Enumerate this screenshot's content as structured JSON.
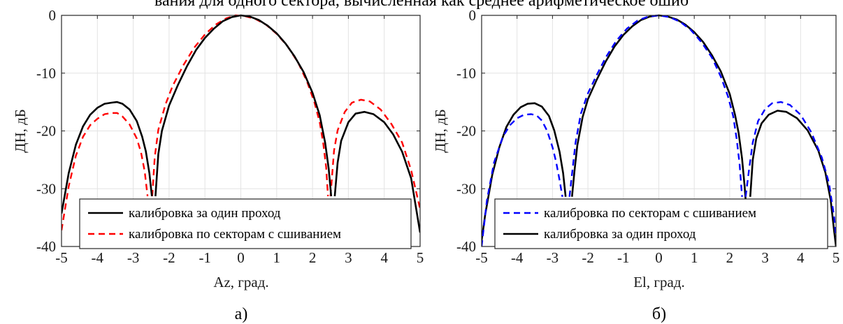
{
  "top_text": "вания для одного сектора, вычисленная как среднее арифметическое ошиб",
  "chart_data": [
    {
      "type": "line",
      "panel_label": "а)",
      "xlabel": "Az, град.",
      "ylabel": "ДН, дБ",
      "xlim": [
        -5,
        5
      ],
      "ylim": [
        -40,
        0
      ],
      "xticks": [
        -5,
        -4,
        -3,
        -2,
        -1,
        0,
        1,
        2,
        3,
        4,
        5
      ],
      "yticks": [
        0,
        -10,
        -20,
        -30,
        -40
      ],
      "grid": true,
      "legend_position": "bottom-right",
      "series": [
        {
          "name": "калибровка за один проход",
          "color": "#000000",
          "style": "solid",
          "segments": [
            [
              [
                -5.0,
                -34.3
              ],
              [
                -4.8,
                -27.3
              ],
              [
                -4.6,
                -22.4
              ],
              [
                -4.4,
                -19.2
              ],
              [
                -4.2,
                -17.2
              ],
              [
                -4.0,
                -16.0
              ],
              [
                -3.8,
                -15.3
              ],
              [
                -3.6,
                -15.1
              ],
              [
                -3.45,
                -15.0
              ],
              [
                -3.3,
                -15.3
              ],
              [
                -3.1,
                -16.3
              ],
              [
                -2.9,
                -18.3
              ],
              [
                -2.75,
                -21.0
              ],
              [
                -2.65,
                -23.5
              ],
              [
                -2.55,
                -27.3
              ],
              [
                -2.48,
                -31.3
              ]
            ],
            [
              [
                -2.38,
                -31.3
              ],
              [
                -2.3,
                -24.0
              ],
              [
                -2.2,
                -20.0
              ],
              [
                -2.0,
                -15.6
              ],
              [
                -1.75,
                -12.0
              ],
              [
                -1.5,
                -8.8
              ],
              [
                -1.25,
                -6.0
              ],
              [
                -1.0,
                -3.9
              ],
              [
                -0.75,
                -2.3
              ],
              [
                -0.5,
                -1.0
              ],
              [
                -0.25,
                -0.3
              ],
              [
                0.0,
                0.0
              ],
              [
                0.25,
                -0.2
              ],
              [
                0.5,
                -0.8
              ],
              [
                0.75,
                -1.8
              ],
              [
                1.0,
                -3.1
              ],
              [
                1.25,
                -4.9
              ],
              [
                1.5,
                -7.1
              ],
              [
                1.75,
                -9.8
              ],
              [
                2.0,
                -13.4
              ],
              [
                2.2,
                -17.3
              ],
              [
                2.35,
                -22.0
              ],
              [
                2.45,
                -26.5
              ],
              [
                2.52,
                -31.3
              ]
            ],
            [
              [
                2.62,
                -31.3
              ],
              [
                2.7,
                -25.5
              ],
              [
                2.8,
                -21.7
              ],
              [
                3.0,
                -18.5
              ],
              [
                3.2,
                -17.0
              ],
              [
                3.45,
                -16.7
              ],
              [
                3.7,
                -17.1
              ],
              [
                4.0,
                -18.5
              ],
              [
                4.25,
                -20.6
              ],
              [
                4.5,
                -23.6
              ],
              [
                4.75,
                -28.2
              ],
              [
                5.0,
                -37.6
              ]
            ]
          ]
        },
        {
          "name": "калибровка по секторам с сшиванием",
          "color": "#ff0000",
          "style": "dashed",
          "segments": [
            [
              [
                -5.0,
                -37.2
              ],
              [
                -4.8,
                -29.6
              ],
              [
                -4.6,
                -24.3
              ],
              [
                -4.4,
                -21.0
              ],
              [
                -4.2,
                -19.0
              ],
              [
                -4.0,
                -17.9
              ],
              [
                -3.8,
                -17.1
              ],
              [
                -3.6,
                -16.9
              ],
              [
                -3.45,
                -16.9
              ],
              [
                -3.3,
                -17.5
              ],
              [
                -3.1,
                -18.9
              ],
              [
                -2.9,
                -21.3
              ],
              [
                -2.78,
                -23.8
              ],
              [
                -2.68,
                -27.0
              ],
              [
                -2.6,
                -31.3
              ]
            ],
            [
              [
                -2.47,
                -31.3
              ],
              [
                -2.4,
                -24.5
              ],
              [
                -2.3,
                -19.8
              ],
              [
                -2.1,
                -15.4
              ],
              [
                -1.9,
                -12.2
              ],
              [
                -1.6,
                -8.6
              ],
              [
                -1.3,
                -5.6
              ],
              [
                -1.0,
                -3.3
              ],
              [
                -0.7,
                -1.6
              ],
              [
                -0.4,
                -0.5
              ],
              [
                -0.15,
                0.0
              ],
              [
                0.1,
                -0.1
              ],
              [
                0.4,
                -0.6
              ],
              [
                0.7,
                -1.6
              ],
              [
                1.0,
                -3.2
              ],
              [
                1.3,
                -5.3
              ],
              [
                1.6,
                -8.2
              ],
              [
                1.85,
                -11.5
              ],
              [
                2.05,
                -15.0
              ],
              [
                2.2,
                -18.5
              ],
              [
                2.3,
                -22.2
              ],
              [
                2.38,
                -26.3
              ],
              [
                2.43,
                -31.3
              ]
            ],
            [
              [
                2.5,
                -31.3
              ],
              [
                2.6,
                -23.4
              ],
              [
                2.7,
                -19.9
              ],
              [
                2.9,
                -16.7
              ],
              [
                3.1,
                -15.1
              ],
              [
                3.35,
                -14.6
              ],
              [
                3.6,
                -14.9
              ],
              [
                3.9,
                -16.3
              ],
              [
                4.2,
                -18.8
              ],
              [
                4.5,
                -22.0
              ],
              [
                4.75,
                -26.8
              ],
              [
                5.0,
                -33.5
              ]
            ]
          ]
        }
      ]
    },
    {
      "type": "line",
      "panel_label": "б)",
      "xlabel": "El, град.",
      "ylabel": "ДН, дБ",
      "xlim": [
        -5,
        5
      ],
      "ylim": [
        -40,
        0
      ],
      "xticks": [
        -5,
        -4,
        -3,
        -2,
        -1,
        0,
        1,
        2,
        3,
        4,
        5
      ],
      "yticks": [
        0,
        -10,
        -20,
        -30,
        -40
      ],
      "grid": true,
      "legend_position": "bottom-right",
      "series": [
        {
          "name": "калибровка по секторам с сшиванием",
          "color": "#0000ff",
          "style": "dashed",
          "segments": [
            [
              [
                -5.0,
                -40.0
              ],
              [
                -4.85,
                -32.0
              ],
              [
                -4.65,
                -25.5
              ],
              [
                -4.4,
                -21.0
              ],
              [
                -4.2,
                -19.0
              ],
              [
                -4.0,
                -17.8
              ],
              [
                -3.8,
                -17.2
              ],
              [
                -3.6,
                -17.1
              ],
              [
                -3.45,
                -17.3
              ],
              [
                -3.3,
                -18.2
              ],
              [
                -3.15,
                -20.0
              ],
              [
                -3.0,
                -22.8
              ],
              [
                -2.9,
                -25.3
              ],
              [
                -2.8,
                -28.5
              ],
              [
                -2.72,
                -31.4
              ]
            ],
            [
              [
                -2.52,
                -31.4
              ],
              [
                -2.45,
                -27.5
              ],
              [
                -2.35,
                -22.0
              ],
              [
                -2.2,
                -17.0
              ],
              [
                -2.0,
                -13.5
              ],
              [
                -1.75,
                -10.3
              ],
              [
                -1.5,
                -7.3
              ],
              [
                -1.2,
                -4.4
              ],
              [
                -0.9,
                -2.3
              ],
              [
                -0.6,
                -0.9
              ],
              [
                -0.3,
                -0.2
              ],
              [
                0.0,
                0.0
              ],
              [
                0.3,
                -0.3
              ],
              [
                0.6,
                -1.1
              ],
              [
                0.9,
                -2.5
              ],
              [
                1.2,
                -4.6
              ],
              [
                1.5,
                -7.3
              ],
              [
                1.75,
                -10.6
              ],
              [
                1.95,
                -14.0
              ],
              [
                2.1,
                -17.5
              ],
              [
                2.2,
                -21.5
              ],
              [
                2.28,
                -25.8
              ],
              [
                2.35,
                -31.4
              ]
            ],
            [
              [
                2.45,
                -31.4
              ],
              [
                2.55,
                -26.5
              ],
              [
                2.65,
                -22.0
              ],
              [
                2.8,
                -18.3
              ],
              [
                3.0,
                -16.2
              ],
              [
                3.2,
                -15.2
              ],
              [
                3.45,
                -15.0
              ],
              [
                3.7,
                -15.5
              ],
              [
                4.0,
                -17.2
              ],
              [
                4.3,
                -20.2
              ],
              [
                4.6,
                -24.6
              ],
              [
                4.8,
                -29.0
              ],
              [
                4.95,
                -35.0
              ],
              [
                5.0,
                -38.5
              ]
            ]
          ]
        },
        {
          "name": "калибровка за один проход",
          "color": "#000000",
          "style": "solid",
          "segments": [
            [
              [
                -5.0,
                -39.0
              ],
              [
                -4.9,
                -34.5
              ],
              [
                -4.7,
                -27.6
              ],
              [
                -4.5,
                -22.8
              ],
              [
                -4.3,
                -19.3
              ],
              [
                -4.1,
                -17.2
              ],
              [
                -3.9,
                -15.9
              ],
              [
                -3.7,
                -15.3
              ],
              [
                -3.5,
                -15.2
              ],
              [
                -3.3,
                -15.8
              ],
              [
                -3.1,
                -17.4
              ],
              [
                -2.95,
                -19.9
              ],
              [
                -2.8,
                -23.6
              ],
              [
                -2.7,
                -27.3
              ],
              [
                -2.63,
                -31.4
              ]
            ],
            [
              [
                -2.45,
                -31.4
              ],
              [
                -2.38,
                -27.0
              ],
              [
                -2.3,
                -22.5
              ],
              [
                -2.15,
                -17.6
              ],
              [
                -2.0,
                -14.5
              ],
              [
                -1.75,
                -11.1
              ],
              [
                -1.5,
                -8.0
              ],
              [
                -1.25,
                -5.4
              ],
              [
                -1.0,
                -3.4
              ],
              [
                -0.75,
                -1.9
              ],
              [
                -0.5,
                -0.8
              ],
              [
                -0.25,
                -0.2
              ],
              [
                0.0,
                0.0
              ],
              [
                0.25,
                -0.2
              ],
              [
                0.5,
                -0.7
              ],
              [
                0.75,
                -1.6
              ],
              [
                1.0,
                -2.9
              ],
              [
                1.25,
                -4.6
              ],
              [
                1.5,
                -6.9
              ],
              [
                1.75,
                -9.7
              ],
              [
                2.0,
                -13.6
              ],
              [
                2.15,
                -17.2
              ],
              [
                2.25,
                -20.3
              ],
              [
                2.35,
                -24.8
              ],
              [
                2.42,
                -29.5
              ],
              [
                2.47,
                -33.5
              ],
              [
                2.52,
                -38.0
              ]
            ],
            [
              [
                2.58,
                -31.4
              ],
              [
                2.65,
                -25.0
              ],
              [
                2.75,
                -21.3
              ],
              [
                2.9,
                -18.7
              ],
              [
                3.1,
                -17.2
              ],
              [
                3.35,
                -16.5
              ],
              [
                3.6,
                -16.7
              ],
              [
                3.9,
                -17.8
              ],
              [
                4.2,
                -19.9
              ],
              [
                4.5,
                -23.4
              ],
              [
                4.7,
                -27.2
              ],
              [
                4.85,
                -32.0
              ],
              [
                4.95,
                -37.5
              ],
              [
                5.0,
                -40.0
              ]
            ]
          ]
        }
      ]
    }
  ]
}
